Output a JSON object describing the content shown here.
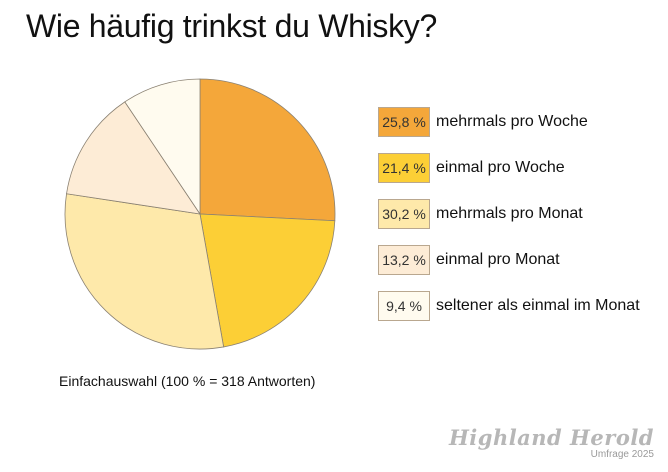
{
  "chart_data": {
    "type": "pie",
    "title": "Wie häufig trinkst du Whisky?",
    "slices": [
      {
        "label": "mehrmals pro Woche",
        "value": 25.8,
        "display": "25,8 %",
        "color": "#f4a73a"
      },
      {
        "label": "einmal pro Woche",
        "value": 21.4,
        "display": "21,4 %",
        "color": "#fccf36"
      },
      {
        "label": "mehrmals pro Monat",
        "value": 30.2,
        "display": "30,2 %",
        "color": "#fee9aa"
      },
      {
        "label": "einmal pro Monat",
        "value": 13.2,
        "display": "13,2 %",
        "color": "#fdecd6"
      },
      {
        "label": "seltener als einmal im Monat",
        "value": 9.4,
        "display": "9,4 %",
        "color": "#fffbef"
      }
    ],
    "legend": "right",
    "note": "Einfachauswahl (100 % = 318 Antworten)"
  },
  "branding": {
    "name": "Highland Herold",
    "sub": "Umfrage 2025"
  }
}
